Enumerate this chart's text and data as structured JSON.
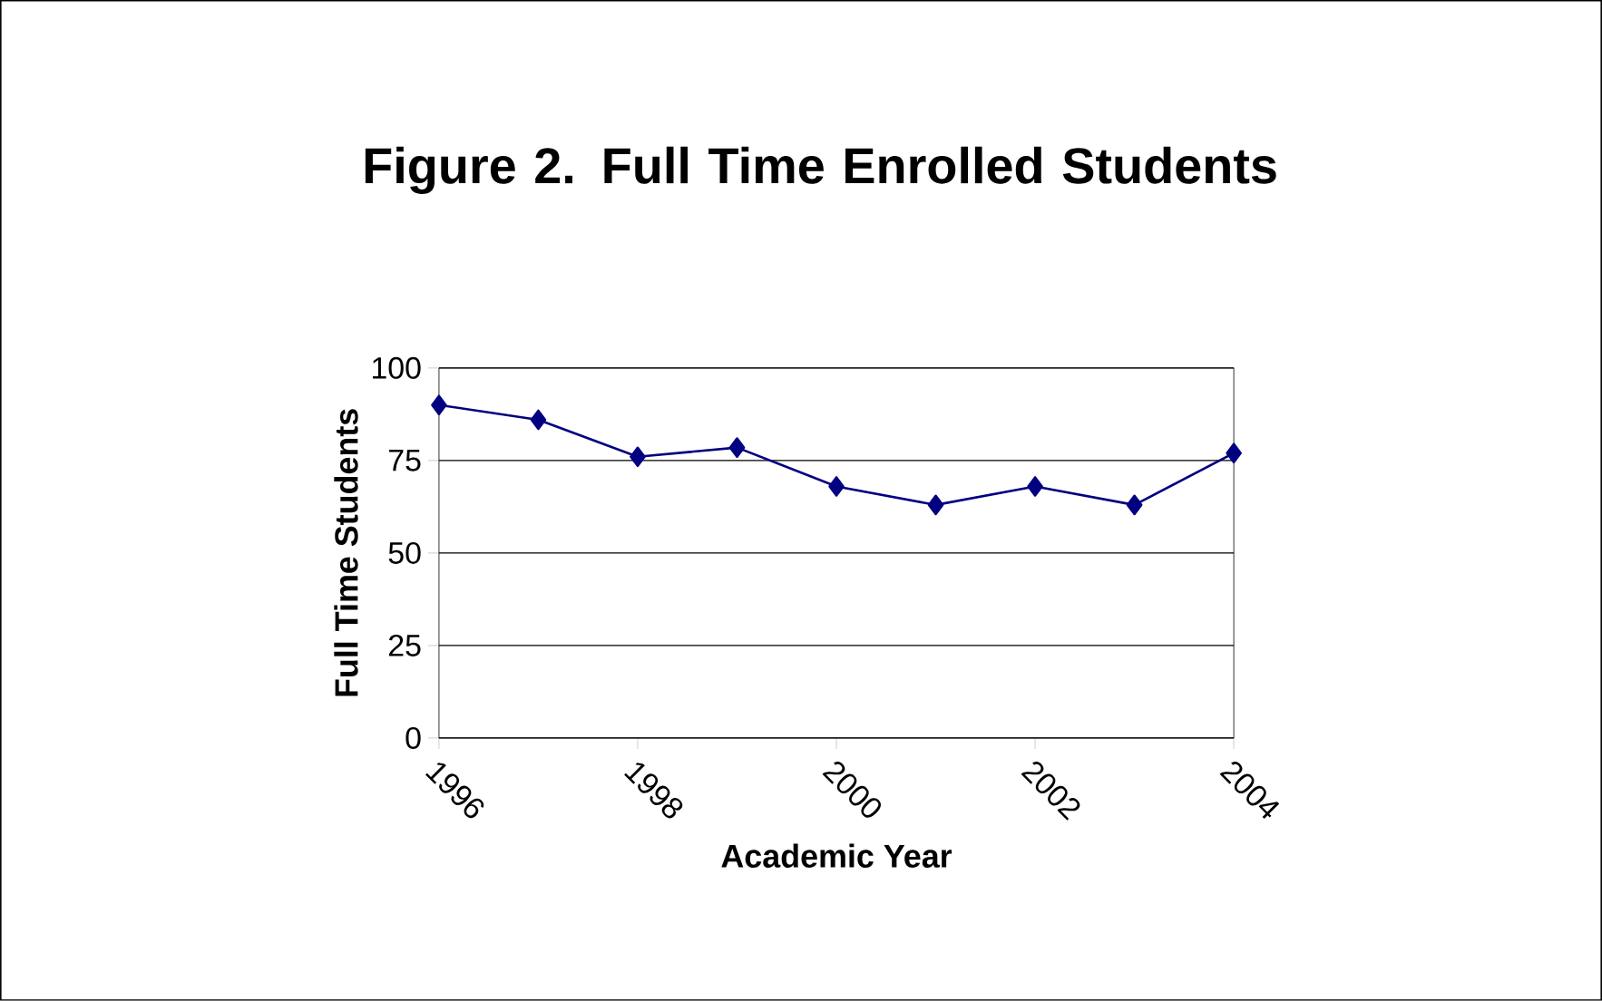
{
  "chart_data": {
    "type": "line",
    "title": "Figure 2. Full Time Enrolled Students",
    "xlabel": "Academic Year",
    "ylabel": "Full Time Students",
    "x": [
      1996,
      1997,
      1998,
      1999,
      2000,
      2001,
      2002,
      2003,
      2004
    ],
    "series": [
      {
        "color": "#000080",
        "values": [
          90,
          86,
          76,
          78.5,
          68,
          63,
          68,
          63,
          77
        ]
      }
    ],
    "xlim": [
      1996,
      2004
    ],
    "xticks": [
      1996,
      1998,
      2000,
      2002,
      2004
    ],
    "ylim": [
      0,
      100
    ],
    "yticks": [
      0,
      25,
      50,
      75,
      100
    ],
    "grid": "y",
    "marker": "diamond",
    "line_style": "solid"
  }
}
